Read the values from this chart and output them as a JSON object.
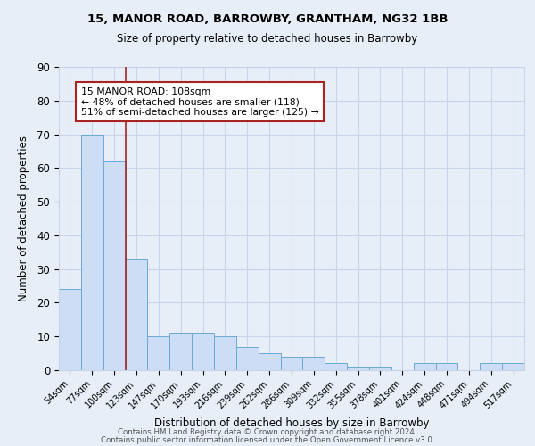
{
  "title1": "15, MANOR ROAD, BARROWBY, GRANTHAM, NG32 1BB",
  "title2": "Size of property relative to detached houses in Barrowby",
  "xlabel": "Distribution of detached houses by size in Barrowby",
  "ylabel": "Number of detached properties",
  "bar_labels": [
    "54sqm",
    "77sqm",
    "100sqm",
    "123sqm",
    "147sqm",
    "170sqm",
    "193sqm",
    "216sqm",
    "239sqm",
    "262sqm",
    "286sqm",
    "309sqm",
    "332sqm",
    "355sqm",
    "378sqm",
    "401sqm",
    "424sqm",
    "448sqm",
    "471sqm",
    "494sqm",
    "517sqm"
  ],
  "bar_values": [
    24,
    70,
    62,
    33,
    10,
    11,
    11,
    10,
    7,
    5,
    4,
    4,
    2,
    1,
    1,
    0,
    2,
    2,
    0,
    2,
    2
  ],
  "bar_color": "#ccddf5",
  "bar_edge_color": "#6aaad4",
  "grid_color": "#c8d4e8",
  "background_color": "#e8eef8",
  "vline_x": 2.5,
  "vline_color": "#aa2222",
  "annotation_line1": "15 MANOR ROAD: 108sqm",
  "annotation_line2": "← 48% of detached houses are smaller (118)",
  "annotation_line3": "51% of semi-detached houses are larger (125) →",
  "annotation_box_color": "#ffffff",
  "annotation_box_edge": "#aa2222",
  "ylim": [
    0,
    90
  ],
  "yticks": [
    0,
    10,
    20,
    30,
    40,
    50,
    60,
    70,
    80,
    90
  ],
  "footer1": "Contains HM Land Registry data © Crown copyright and database right 2024.",
  "footer2": "Contains public sector information licensed under the Open Government Licence v3.0."
}
